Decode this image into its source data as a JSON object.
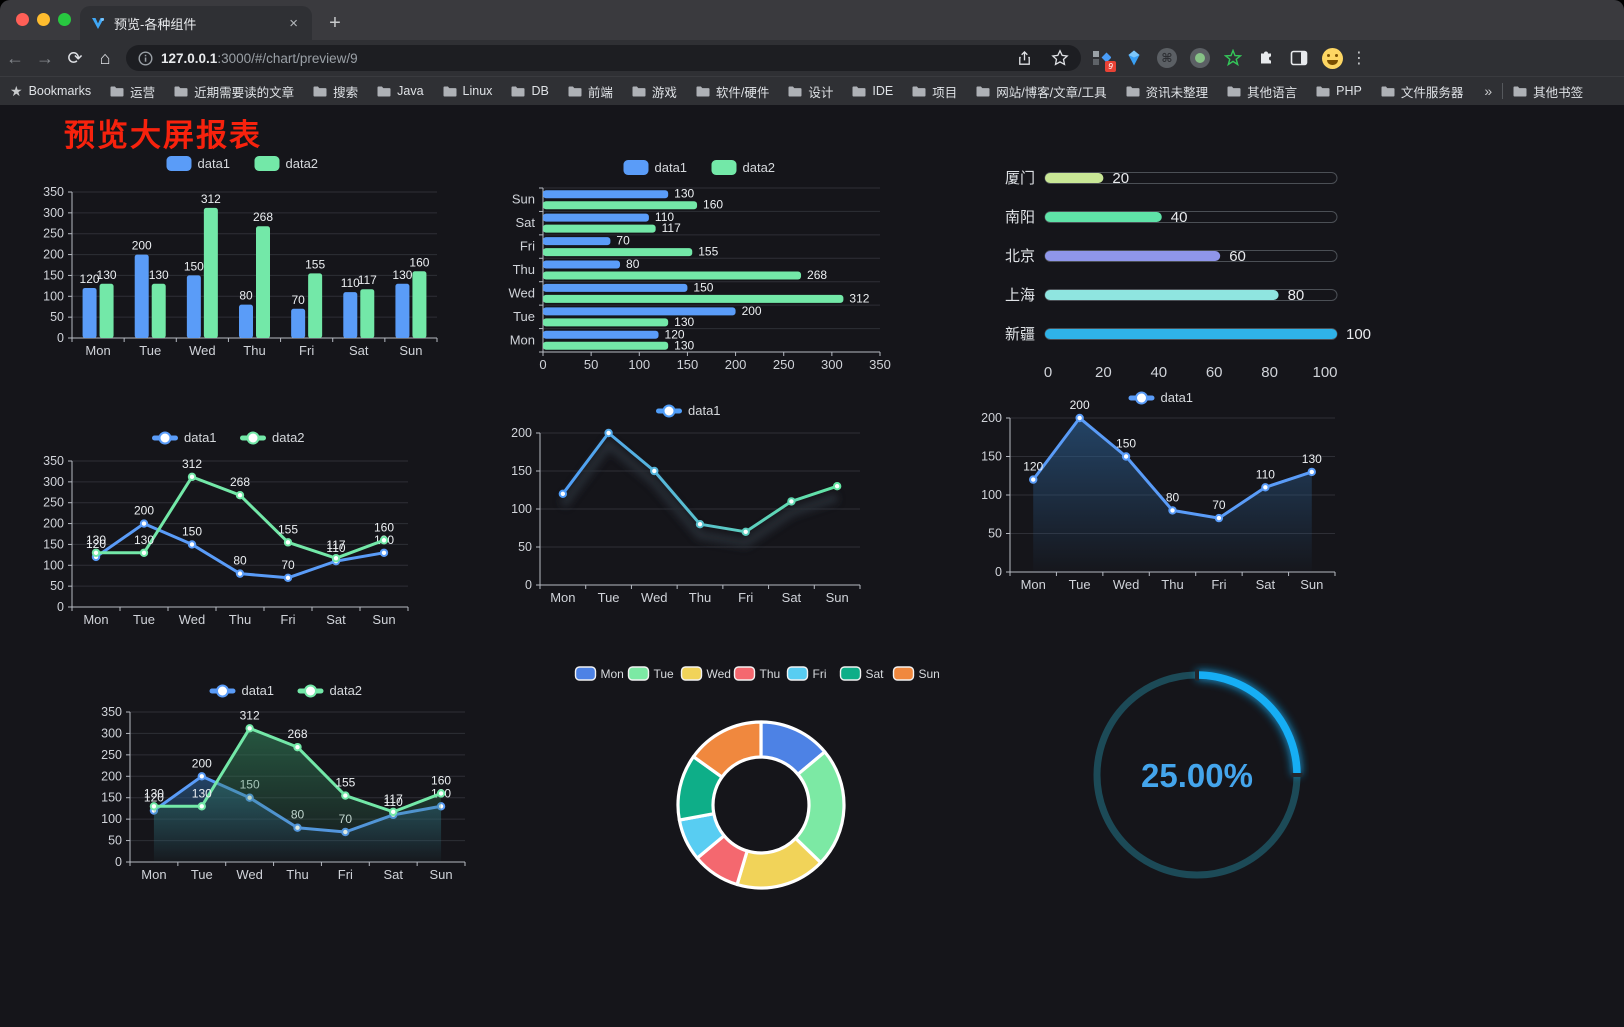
{
  "browser": {
    "window_controls": [
      "close",
      "minimize",
      "zoom"
    ],
    "tab_title": "预览-各种组件",
    "tab_close": "×",
    "new_tab": "+",
    "url_host": "127.0.0.1",
    "url_rest": ":3000/#/chart/preview/9",
    "bookmarks_bar_label": "Bookmarks",
    "bookmarks": [
      "运营",
      "近期需要读的文章",
      "搜索",
      "Java",
      "Linux",
      "DB",
      "前端",
      "游戏",
      "软件/硬件",
      "设计",
      "IDE",
      "项目",
      "网站/博客/文章/工具",
      "资讯未整理",
      "其他语言",
      "PHP",
      "文件服务器"
    ],
    "bookmarks_overflow": "»",
    "other_bookmarks": "其他书签",
    "extension_badge": "9",
    "extension_icons": [
      "extensions-grid-icon",
      "gem-icon",
      "command-icon",
      "record-icon",
      "star-green-icon",
      "puzzle-icon",
      "tab-window-icon",
      "profile-emoji-icon",
      "menu-dots-icon"
    ],
    "menu_dots": "⋮"
  },
  "page": {
    "title": "预览大屏报表",
    "title_color": "#f7220d",
    "background": "#15151a"
  },
  "chart_data": [
    {
      "id": "grouped-bar",
      "type": "bar",
      "categories": [
        "Mon",
        "Tue",
        "Wed",
        "Thu",
        "Fri",
        "Sat",
        "Sun"
      ],
      "series": [
        {
          "name": "data1",
          "color": "#5a9cf8",
          "values": [
            120,
            200,
            150,
            80,
            70,
            110,
            130
          ]
        },
        {
          "name": "data2",
          "color": "#73e8a8",
          "values": [
            130,
            130,
            312,
            268,
            155,
            117,
            160
          ]
        }
      ],
      "ylim": [
        0,
        350
      ],
      "yticks": [
        0,
        50,
        100,
        150,
        200,
        250,
        300,
        350
      ],
      "legend": [
        "data1",
        "data2"
      ],
      "legend_position": "top",
      "grid": true,
      "value_labels": true
    },
    {
      "id": "grouped-bar-horizontal",
      "type": "bar",
      "orientation": "horizontal",
      "categories": [
        "Mon",
        "Tue",
        "Wed",
        "Thu",
        "Fri",
        "Sat",
        "Sun"
      ],
      "categories_top_to_bottom": [
        "Sun",
        "Sat",
        "Fri",
        "Thu",
        "Wed",
        "Tue",
        "Mon"
      ],
      "series": [
        {
          "name": "data1",
          "color": "#5a9cf8",
          "values": [
            120,
            200,
            150,
            80,
            70,
            110,
            130
          ]
        },
        {
          "name": "data2",
          "color": "#73e8a8",
          "values": [
            130,
            130,
            312,
            268,
            155,
            117,
            160
          ]
        }
      ],
      "xlim": [
        0,
        350
      ],
      "xticks": [
        0,
        50,
        100,
        150,
        200,
        250,
        300,
        350
      ],
      "legend": [
        "data1",
        "data2"
      ],
      "legend_position": "top",
      "grid": true,
      "value_labels": true
    },
    {
      "id": "city-progress",
      "type": "bar",
      "style": "progress-pills",
      "items": [
        {
          "label": "厦门",
          "value": 20,
          "color": "#c9e796"
        },
        {
          "label": "南阳",
          "value": 40,
          "color": "#5fe3a8"
        },
        {
          "label": "北京",
          "value": 60,
          "color": "#8f96ea"
        },
        {
          "label": "上海",
          "value": 80,
          "color": "#8fe5e0"
        },
        {
          "label": "新疆",
          "value": 100,
          "color": "#2fb3e8"
        }
      ],
      "max": 100,
      "xticks": [
        0,
        20,
        40,
        60,
        80,
        100
      ]
    },
    {
      "id": "line-two-series",
      "type": "line",
      "categories": [
        "Mon",
        "Tue",
        "Wed",
        "Thu",
        "Fri",
        "Sat",
        "Sun"
      ],
      "series": [
        {
          "name": "data1",
          "color": "#5a9cf8",
          "values": [
            120,
            200,
            150,
            80,
            70,
            110,
            130
          ]
        },
        {
          "name": "data2",
          "color": "#73e8a8",
          "values": [
            130,
            130,
            312,
            268,
            155,
            117,
            160
          ]
        }
      ],
      "ylim": [
        0,
        350
      ],
      "yticks": [
        0,
        50,
        100,
        150,
        200,
        250,
        300,
        350
      ],
      "legend": [
        "data1",
        "data2"
      ],
      "legend_position": "top",
      "value_labels": true
    },
    {
      "id": "line-gradient",
      "type": "line",
      "categories": [
        "Mon",
        "Tue",
        "Wed",
        "Thu",
        "Fri",
        "Sat",
        "Sun"
      ],
      "series": [
        {
          "name": "data1",
          "color_start": "#4f9df8",
          "color_end": "#63e6a3",
          "values": [
            120,
            200,
            150,
            80,
            70,
            110,
            130
          ]
        }
      ],
      "ylim": [
        0,
        200
      ],
      "yticks": [
        0,
        50,
        100,
        150,
        200
      ],
      "legend": [
        "data1"
      ],
      "legend_position": "top",
      "value_labels": false,
      "shadow": true
    },
    {
      "id": "line-area",
      "type": "area",
      "categories": [
        "Mon",
        "Tue",
        "Wed",
        "Thu",
        "Fri",
        "Sat",
        "Sun"
      ],
      "series": [
        {
          "name": "data1",
          "color": "#5a9cf8",
          "area": true,
          "values": [
            120,
            200,
            150,
            80,
            70,
            110,
            130
          ]
        }
      ],
      "ylim": [
        0,
        200
      ],
      "yticks": [
        0,
        50,
        100,
        150,
        200
      ],
      "legend": [
        "data1"
      ],
      "legend_position": "top",
      "value_labels": true
    },
    {
      "id": "line-two-area",
      "type": "area",
      "categories": [
        "Mon",
        "Tue",
        "Wed",
        "Thu",
        "Fri",
        "Sat",
        "Sun"
      ],
      "series": [
        {
          "name": "data1",
          "color": "#5a9cf8",
          "area": true,
          "values": [
            120,
            200,
            150,
            80,
            70,
            110,
            130
          ]
        },
        {
          "name": "data2",
          "color": "#73e8a8",
          "area": true,
          "values": [
            130,
            130,
            312,
            268,
            155,
            117,
            160
          ]
        }
      ],
      "ylim": [
        0,
        350
      ],
      "yticks": [
        0,
        50,
        100,
        150,
        200,
        250,
        300,
        350
      ],
      "legend": [
        "data1",
        "data2"
      ],
      "legend_position": "top",
      "value_labels": true
    },
    {
      "id": "week-donut",
      "type": "pie",
      "donut": true,
      "categories": [
        "Mon",
        "Tue",
        "Wed",
        "Thu",
        "Fri",
        "Sat",
        "Sun"
      ],
      "values": [
        120,
        200,
        150,
        80,
        70,
        110,
        130
      ],
      "colors": [
        "#4d82e5",
        "#7ce9a4",
        "#f1d359",
        "#f4686f",
        "#58cdf2",
        "#0eae88",
        "#f0883e"
      ],
      "legend_position": "top",
      "border_color": "#ffffff"
    },
    {
      "id": "percent-gauge",
      "type": "gauge",
      "value": 25,
      "max": 100,
      "display": "25.00%",
      "arc_color": "#16aef5",
      "track_color": "#1c4a57",
      "text_color": "#44a5ec"
    }
  ]
}
